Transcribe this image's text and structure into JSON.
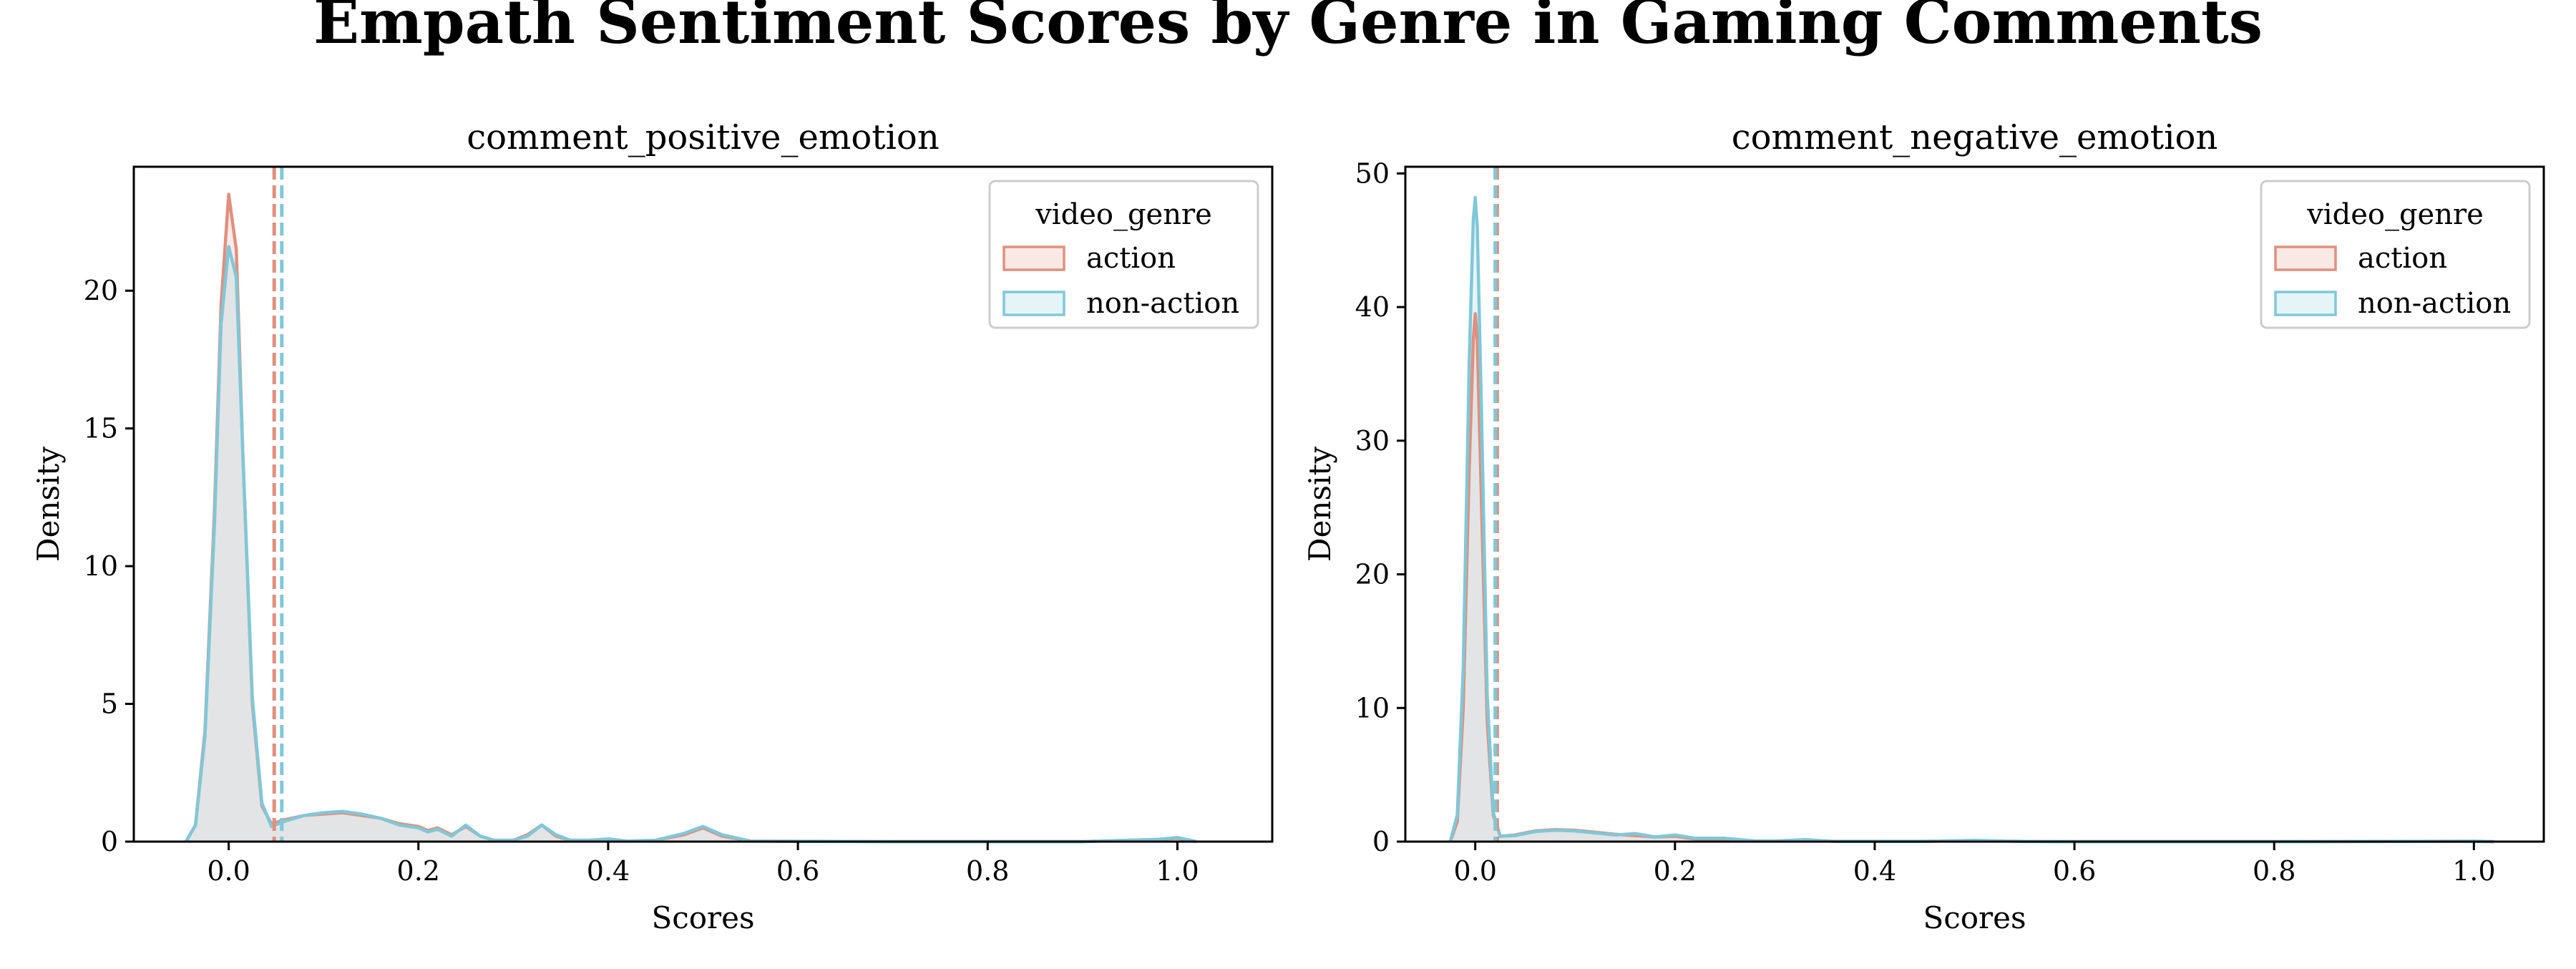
{
  "figure": {
    "title": "Empath Sentiment Scores by Genre in Gaming Comments"
  },
  "colors": {
    "action": "#e0907e",
    "non_action": "#7fc8d8",
    "overlap_fill": "#dde3e3"
  },
  "chart_data": [
    {
      "type": "area",
      "title": "comment_positive_emotion",
      "xlabel": "Scores",
      "ylabel": "Density",
      "xlim": [
        -0.1,
        1.1
      ],
      "ylim": [
        0,
        24.5
      ],
      "xticks": [
        0.0,
        0.2,
        0.4,
        0.6,
        0.8,
        1.0
      ],
      "xtick_labels": [
        "0.0",
        "0.2",
        "0.4",
        "0.6",
        "0.8",
        "1.0"
      ],
      "yticks": [
        0,
        5,
        10,
        15,
        20
      ],
      "ytick_labels": [
        "0",
        "5",
        "10",
        "15",
        "20"
      ],
      "grid": false,
      "legend": {
        "title": "video_genre",
        "placement": "top-right",
        "entries": [
          "action",
          "non-action"
        ]
      },
      "series": [
        {
          "name": "action",
          "color": "#e0907e",
          "mean": 0.048,
          "x": [
            -0.045,
            -0.035,
            -0.025,
            -0.015,
            -0.008,
            0.0,
            0.008,
            0.015,
            0.025,
            0.035,
            0.045,
            0.06,
            0.08,
            0.1,
            0.12,
            0.14,
            0.16,
            0.18,
            0.2,
            0.21,
            0.22,
            0.235,
            0.25,
            0.265,
            0.28,
            0.3,
            0.315,
            0.33,
            0.345,
            0.36,
            0.38,
            0.4,
            0.42,
            0.45,
            0.48,
            0.5,
            0.52,
            0.55,
            0.6,
            0.7,
            0.8,
            0.9,
            0.98,
            1.0,
            1.02
          ],
          "y": [
            0.0,
            0.6,
            4.0,
            12.0,
            19.5,
            23.5,
            21.5,
            14.0,
            5.0,
            1.3,
            0.65,
            0.8,
            0.95,
            1.0,
            1.05,
            0.95,
            0.85,
            0.65,
            0.55,
            0.4,
            0.5,
            0.25,
            0.55,
            0.2,
            0.05,
            0.05,
            0.25,
            0.6,
            0.2,
            0.05,
            0.05,
            0.08,
            0.02,
            0.05,
            0.25,
            0.5,
            0.2,
            0.02,
            0.01,
            0.0,
            0.0,
            0.0,
            0.08,
            0.12,
            0.0
          ]
        },
        {
          "name": "non-action",
          "color": "#7fc8d8",
          "mean": 0.056,
          "x": [
            -0.045,
            -0.035,
            -0.025,
            -0.015,
            -0.008,
            0.0,
            0.008,
            0.015,
            0.025,
            0.035,
            0.045,
            0.06,
            0.08,
            0.1,
            0.12,
            0.14,
            0.16,
            0.18,
            0.2,
            0.21,
            0.22,
            0.235,
            0.25,
            0.265,
            0.28,
            0.3,
            0.315,
            0.33,
            0.345,
            0.36,
            0.38,
            0.4,
            0.42,
            0.45,
            0.48,
            0.5,
            0.52,
            0.55,
            0.6,
            0.7,
            0.8,
            0.9,
            0.98,
            1.0,
            1.02
          ],
          "y": [
            0.0,
            0.6,
            3.8,
            11.5,
            18.8,
            21.6,
            20.5,
            14.0,
            5.2,
            1.4,
            0.55,
            0.75,
            0.95,
            1.05,
            1.1,
            1.0,
            0.85,
            0.6,
            0.5,
            0.35,
            0.45,
            0.2,
            0.6,
            0.2,
            0.05,
            0.05,
            0.2,
            0.6,
            0.25,
            0.05,
            0.05,
            0.1,
            0.02,
            0.05,
            0.3,
            0.55,
            0.25,
            0.02,
            0.01,
            0.0,
            0.0,
            0.0,
            0.08,
            0.15,
            0.0
          ]
        }
      ]
    },
    {
      "type": "area",
      "title": "comment_negative_emotion",
      "xlabel": "Scores",
      "ylabel": "Density",
      "xlim": [
        -0.07,
        1.07
      ],
      "ylim": [
        0,
        50.5
      ],
      "xticks": [
        0.0,
        0.2,
        0.4,
        0.6,
        0.8,
        1.0
      ],
      "xtick_labels": [
        "0.0",
        "0.2",
        "0.4",
        "0.6",
        "0.8",
        "1.0"
      ],
      "yticks": [
        0,
        10,
        20,
        30,
        40,
        50
      ],
      "ytick_labels": [
        "0",
        "10",
        "20",
        "30",
        "40",
        "50"
      ],
      "grid": false,
      "legend": {
        "title": "video_genre",
        "placement": "top-right",
        "entries": [
          "action",
          "non-action"
        ]
      },
      "series": [
        {
          "name": "action",
          "color": "#e0907e",
          "mean": 0.022,
          "x": [
            -0.025,
            -0.018,
            -0.012,
            -0.006,
            -0.002,
            0.0,
            0.002,
            0.006,
            0.012,
            0.018,
            0.025,
            0.04,
            0.06,
            0.08,
            0.1,
            0.12,
            0.14,
            0.16,
            0.18,
            0.2,
            0.22,
            0.25,
            0.28,
            0.3,
            0.33,
            0.36,
            0.4,
            0.45,
            0.5,
            0.55,
            0.6,
            0.8,
            1.0,
            1.02
          ],
          "y": [
            0.0,
            1.5,
            10.0,
            28.0,
            37.5,
            39.5,
            37.5,
            26.0,
            9.0,
            2.0,
            0.4,
            0.5,
            0.8,
            0.9,
            0.85,
            0.7,
            0.55,
            0.45,
            0.35,
            0.4,
            0.2,
            0.15,
            0.05,
            0.05,
            0.12,
            0.02,
            0.02,
            0.02,
            0.08,
            0.01,
            0.0,
            0.0,
            0.02,
            0.0
          ]
        },
        {
          "name": "non-action",
          "color": "#7fc8d8",
          "mean": 0.02,
          "x": [
            -0.025,
            -0.018,
            -0.012,
            -0.006,
            -0.002,
            0.0,
            0.002,
            0.006,
            0.012,
            0.018,
            0.025,
            0.04,
            0.06,
            0.08,
            0.1,
            0.12,
            0.14,
            0.16,
            0.18,
            0.2,
            0.22,
            0.25,
            0.28,
            0.3,
            0.33,
            0.36,
            0.4,
            0.45,
            0.5,
            0.55,
            0.6,
            0.8,
            1.0,
            1.02
          ],
          "y": [
            0.0,
            2.0,
            13.0,
            36.0,
            46.5,
            48.2,
            46.0,
            33.0,
            11.0,
            2.2,
            0.4,
            0.45,
            0.75,
            0.85,
            0.8,
            0.65,
            0.5,
            0.6,
            0.35,
            0.5,
            0.25,
            0.25,
            0.05,
            0.05,
            0.15,
            0.02,
            0.02,
            0.02,
            0.1,
            0.01,
            0.0,
            0.0,
            0.03,
            0.0
          ]
        }
      ]
    }
  ]
}
